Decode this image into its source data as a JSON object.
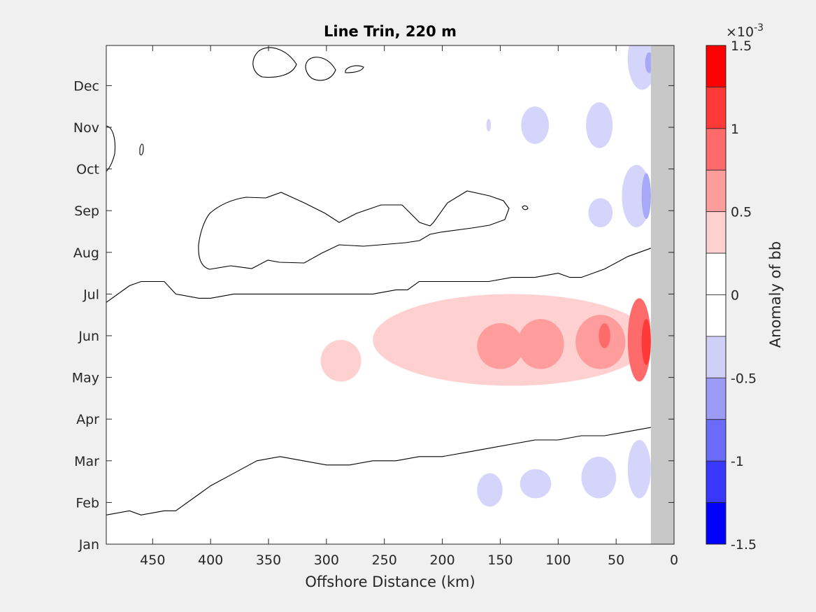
{
  "chart_data": {
    "type": "contourf",
    "title": "Line Trin, 220 m",
    "xlabel": "Offshore Distance (km)",
    "ylabel": "",
    "xlim": [
      490,
      0
    ],
    "x_reversed": true,
    "xticks": [
      450,
      400,
      350,
      300,
      250,
      200,
      150,
      100,
      50,
      0
    ],
    "yticks": [
      "Jan",
      "Feb",
      "Mar",
      "Apr",
      "May",
      "Jun",
      "Jul",
      "Aug",
      "Sep",
      "Oct",
      "Nov",
      "Dec"
    ],
    "coast_mask": {
      "x_from": 20,
      "x_to": 0,
      "color": "#c8c8c8"
    },
    "colorbar": {
      "label": "Anomaly of bb",
      "exponent": "×10",
      "exponent_power": "-3",
      "limits": [
        -1.5,
        1.5
      ],
      "tick_labels": [
        "1.5",
        "1",
        "0.5",
        "0",
        "-0.5",
        "-1",
        "-1.5"
      ],
      "tick_values": [
        1.5,
        1,
        0.5,
        0,
        -0.5,
        -1,
        -1.5
      ],
      "levels": [
        -1.5,
        -1.25,
        -1.0,
        -0.75,
        -0.5,
        -0.25,
        0,
        0.25,
        0.5,
        0.75,
        1.0,
        1.25,
        1.5
      ],
      "colors": [
        "#0000ff",
        "#2b2bff",
        "#5555ff",
        "#8080ff",
        "#aaaaff",
        "#d5d5ff",
        "#ffffff",
        "#ffffff",
        "#ffd5d5",
        "#ffaaaa",
        "#ff8080",
        "#ff5555",
        "#ff2b2b",
        "#ff0000"
      ],
      "band_colors_top_to_bottom": [
        "#ff0000",
        "#ff3838",
        "#ff6b6b",
        "#ff9c9c",
        "#ffd0d0",
        "#ffffff",
        "#ffffff",
        "#cfcff8",
        "#9c9cf8",
        "#6b6bf8",
        "#3838fc",
        "#0000ff"
      ]
    },
    "anomaly_regions": [
      {
        "name": "Dec blob 1",
        "sign": "negative",
        "x": [
          40,
          15
        ],
        "y": [
          10.9,
          12.4
        ],
        "level": 1
      },
      {
        "name": "Dec blob 1 core",
        "sign": "negative",
        "x": [
          25,
          18
        ],
        "y": [
          11.3,
          11.8
        ],
        "level": 2
      },
      {
        "name": "Nov blob 160",
        "sign": "negative",
        "x": [
          162,
          158
        ],
        "y": [
          9.9,
          10.2
        ],
        "level": 1
      },
      {
        "name": "Nov blob 120",
        "sign": "negative",
        "x": [
          132,
          108
        ],
        "y": [
          9.6,
          10.5
        ],
        "level": 1
      },
      {
        "name": "Nov blob 60",
        "sign": "negative",
        "x": [
          76,
          53
        ],
        "y": [
          9.5,
          10.6
        ],
        "level": 1
      },
      {
        "name": "Aug-Sep coastal",
        "sign": "negative",
        "x": [
          45,
          20
        ],
        "y": [
          7.6,
          9.1
        ],
        "level": 1
      },
      {
        "name": "Aug-Sep coastal core",
        "sign": "negative",
        "x": [
          28,
          20
        ],
        "y": [
          7.8,
          8.9
        ],
        "level": 2
      },
      {
        "name": "Aug blob 60",
        "sign": "negative",
        "x": [
          74,
          53
        ],
        "y": [
          7.6,
          8.3
        ],
        "level": 1
      },
      {
        "name": "May-Jun main",
        "sign": "positive",
        "x": [
          260,
          20
        ],
        "y": [
          3.8,
          6.0
        ],
        "level": 1
      },
      {
        "name": "Apr blob 290",
        "sign": "positive",
        "x": [
          305,
          270
        ],
        "y": [
          3.9,
          4.9
        ],
        "level": 1
      },
      {
        "name": "May 150",
        "sign": "positive",
        "x": [
          170,
          130
        ],
        "y": [
          4.2,
          5.3
        ],
        "level": 2
      },
      {
        "name": "May 115",
        "sign": "positive",
        "x": [
          135,
          95
        ],
        "y": [
          4.2,
          5.4
        ],
        "level": 2
      },
      {
        "name": "May 60",
        "sign": "positive",
        "x": [
          85,
          42
        ],
        "y": [
          4.2,
          5.5
        ],
        "level": 2
      },
      {
        "name": "May 60 core",
        "sign": "positive",
        "x": [
          65,
          55
        ],
        "y": [
          4.7,
          5.3
        ],
        "level": 3
      },
      {
        "name": "May coast",
        "sign": "positive",
        "x": [
          40,
          20
        ],
        "y": [
          3.9,
          5.9
        ],
        "level": 3
      },
      {
        "name": "May coast core",
        "sign": "positive",
        "x": [
          28,
          20
        ],
        "y": [
          4.3,
          5.4
        ],
        "level": 4
      },
      {
        "name": "Mar coastal",
        "sign": "negative",
        "x": [
          40,
          20
        ],
        "y": [
          1.1,
          2.5
        ],
        "level": 1
      },
      {
        "name": "Feb blob 150",
        "sign": "negative",
        "x": [
          170,
          148
        ],
        "y": [
          0.9,
          1.7
        ],
        "level": 1
      },
      {
        "name": "Feb blob 120",
        "sign": "negative",
        "x": [
          133,
          106
        ],
        "y": [
          1.1,
          1.8
        ],
        "level": 1
      },
      {
        "name": "Feb blob 60",
        "sign": "negative",
        "x": [
          80,
          50
        ],
        "y": [
          1.1,
          2.1
        ],
        "level": 1
      }
    ],
    "zero_contours": [
      {
        "name": "upper contour of spring band",
        "x": [
          490,
          470,
          460,
          440,
          430,
          410,
          400,
          380,
          360,
          340,
          320,
          300,
          280,
          260,
          240,
          230,
          220,
          200,
          180,
          160,
          140,
          120,
          100,
          90,
          80,
          60,
          40,
          20
        ],
        "y": [
          5.8,
          6.2,
          6.3,
          6.3,
          6.0,
          5.9,
          5.9,
          6.0,
          6.0,
          6.0,
          6.0,
          6.0,
          6.0,
          6.0,
          6.1,
          6.1,
          6.3,
          6.3,
          6.3,
          6.3,
          6.4,
          6.4,
          6.5,
          6.4,
          6.4,
          6.6,
          6.9,
          7.1
        ]
      },
      {
        "name": "lower contour of spring band",
        "x": [
          490,
          470,
          460,
          440,
          430,
          410,
          400,
          380,
          360,
          340,
          320,
          300,
          280,
          260,
          240,
          220,
          200,
          180,
          160,
          140,
          120,
          100,
          80,
          60,
          40,
          20
        ],
        "y": [
          0.7,
          0.8,
          0.7,
          0.8,
          0.8,
          1.2,
          1.4,
          1.7,
          2.0,
          2.1,
          2.0,
          1.9,
          1.9,
          2.0,
          2.0,
          2.1,
          2.1,
          2.2,
          2.3,
          2.4,
          2.5,
          2.5,
          2.6,
          2.6,
          2.7,
          2.8
        ]
      }
    ]
  }
}
